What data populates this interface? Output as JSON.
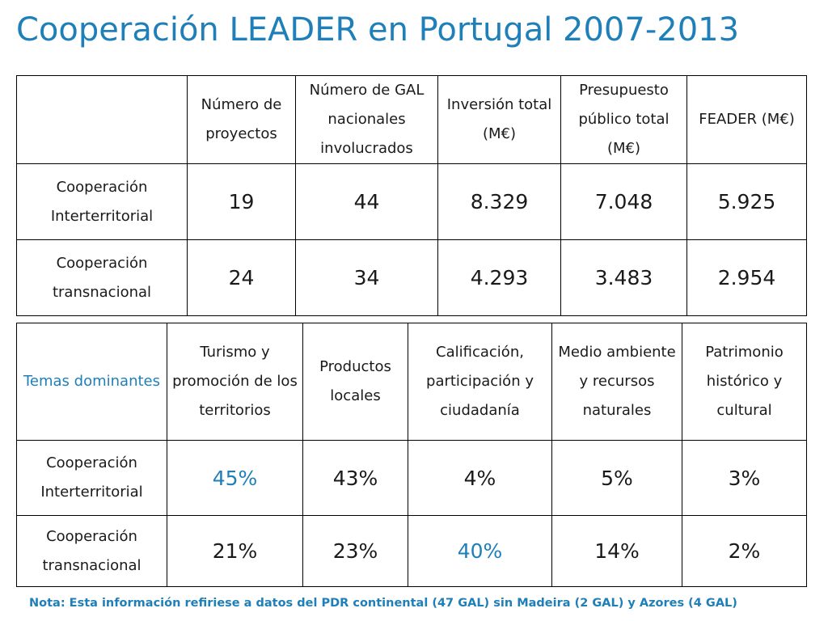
{
  "title": "Cooperación LEADER en Portugal 2007-2013",
  "table1": {
    "headers": [
      "",
      "Número de proyectos",
      "Número de GAL nacionales involucrados",
      "Inversión total (M€)",
      "Presupuesto público total (M€)",
      "FEADER (M€)"
    ],
    "rows": [
      {
        "label": "Cooperación Interterritorial",
        "values": [
          "19",
          "44",
          "8.329",
          "7.048",
          "5.925"
        ]
      },
      {
        "label": "Cooperación transnacional",
        "values": [
          "24",
          "34",
          "4.293",
          "3.483",
          "2.954"
        ]
      }
    ]
  },
  "table2": {
    "headers": [
      "Temas dominantes",
      "Turismo y promoción de los territorios",
      "Productos locales",
      "Calificación, participación y ciudadanía",
      "Medio ambiente y recursos naturales",
      "Patrimonio histórico y cultural"
    ],
    "rows": [
      {
        "label": "Cooperación Interterritorial",
        "values": [
          "45%",
          "43%",
          "4%",
          "5%",
          "3%"
        ]
      },
      {
        "label": "Cooperación transnacional",
        "values": [
          "21%",
          "23%",
          "40%",
          "14%",
          "2%"
        ]
      }
    ]
  },
  "note": "Nota: Esta información refiriese a datos del PDR continental (47 GAL) sin Madeira (2 GAL) y Azores (4 GAL)",
  "colors": {
    "accent": "#1f7fb8",
    "text": "#1a1a1a",
    "border": "#000000"
  }
}
